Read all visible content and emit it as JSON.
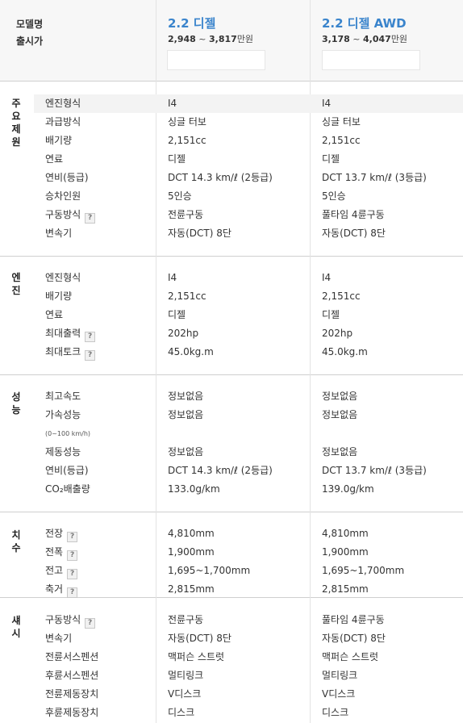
{
  "header": {
    "model_label": "모델명",
    "release_label": "출시가",
    "models": [
      {
        "name": "2.2 디젤",
        "price_from": "2,948",
        "price_sep": " ~ ",
        "price_to": "3,817",
        "unit": "만원"
      },
      {
        "name": "2.2 디젤 AWD",
        "price_from": "3,178",
        "price_sep": " ~ ",
        "price_to": "4,047",
        "unit": "만원"
      }
    ]
  },
  "sections": {
    "main": {
      "title": [
        "주",
        "요",
        "제",
        "원"
      ],
      "rows": [
        {
          "label": "엔진형식",
          "v1": "I4",
          "v2": "I4"
        },
        {
          "label": "과급방식",
          "v1": "싱글 터보",
          "v2": "싱글 터보"
        },
        {
          "label": "배기량",
          "v1": "2,151cc",
          "v2": "2,151cc"
        },
        {
          "label": "연료",
          "v1": "디젤",
          "v2": "디젤"
        },
        {
          "label": "연비(등급)",
          "v1": "DCT 14.3 km/ℓ (2등급)",
          "v2": "DCT 13.7 km/ℓ (3등급)"
        },
        {
          "label": "승차인원",
          "v1": "5인승",
          "v2": "5인승"
        },
        {
          "label": "구동방식",
          "v1": "전륜구동",
          "v2": "풀타임 4륜구동"
        },
        {
          "label": "변속기",
          "v1": "자동(DCT) 8단",
          "v2": "자동(DCT) 8단"
        }
      ]
    },
    "engine": {
      "title": [
        "엔",
        "진"
      ],
      "rows": [
        {
          "label": "엔진형식",
          "v1": "I4",
          "v2": "I4"
        },
        {
          "label": "배기량",
          "v1": "2,151cc",
          "v2": "2,151cc"
        },
        {
          "label": "연료",
          "v1": "디젤",
          "v2": "디젤"
        },
        {
          "label": "최대출력",
          "v1": "202hp",
          "v2": "202hp"
        },
        {
          "label": "최대토크",
          "v1": "45.0kg.m",
          "v2": "45.0kg.m"
        }
      ]
    },
    "performance": {
      "title": [
        "성",
        "능"
      ],
      "note": "(0~100 km/h)",
      "rows": [
        {
          "label": "최고속도",
          "v1": "정보없음",
          "v2": "정보없음"
        },
        {
          "label": "가속성능",
          "v1": "정보없음",
          "v2": "정보없음"
        },
        {
          "label": "제동성능",
          "v1": "정보없음",
          "v2": "정보없음"
        },
        {
          "label": "연비(등급)",
          "v1": "DCT 14.3 km/ℓ (2등급)",
          "v2": "DCT 13.7 km/ℓ (3등급)"
        },
        {
          "label": "CO₂배출량",
          "v1": "133.0g/km",
          "v2": "139.0g/km"
        }
      ]
    },
    "dimensions": {
      "title": [
        "치",
        "수"
      ],
      "rows": [
        {
          "label": "전장",
          "v1": "4,810mm",
          "v2": "4,810mm"
        },
        {
          "label": "전폭",
          "v1": "1,900mm",
          "v2": "1,900mm"
        },
        {
          "label": "전고",
          "v1": "1,695~1,700mm",
          "v2": "1,695~1,700mm"
        },
        {
          "label": "축거",
          "v1": "2,815mm",
          "v2": "2,815mm"
        }
      ]
    },
    "chassis": {
      "title": [
        "섀",
        "시"
      ],
      "rows": [
        {
          "label": "구동방식",
          "v1": "전륜구동",
          "v2": "풀타임 4륜구동"
        },
        {
          "label": "변속기",
          "v1": "자동(DCT) 8단",
          "v2": "자동(DCT) 8단"
        },
        {
          "label": "전륜서스펜션",
          "v1": "맥퍼슨 스트럿",
          "v2": "맥퍼슨 스트럿"
        },
        {
          "label": "후륜서스펜션",
          "v1": "멀티링크",
          "v2": "멀티링크"
        },
        {
          "label": "전륜제동장치",
          "v1": "V디스크",
          "v2": "V디스크"
        },
        {
          "label": "후륜제동장치",
          "v1": "디스크",
          "v2": "디스크"
        }
      ]
    }
  },
  "help_icon_text": "?",
  "colors": {
    "accent": "#3a84cc",
    "header_bg": "#f7f7f7",
    "highlight_row": "#f3f3f3"
  }
}
